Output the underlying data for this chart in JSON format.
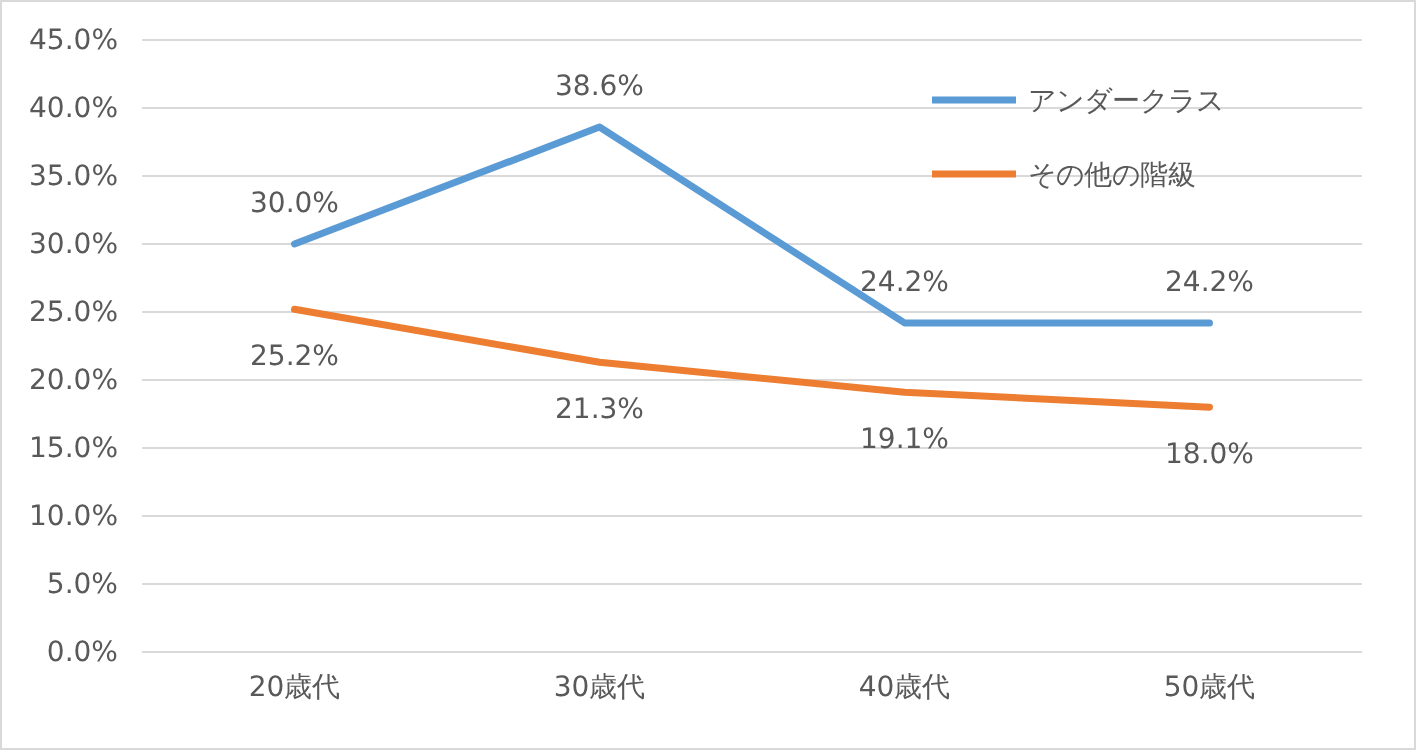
{
  "chart_data": {
    "type": "line",
    "categories": [
      "20歳代",
      "30歳代",
      "40歳代",
      "50歳代"
    ],
    "series": [
      {
        "name": "アンダークラス",
        "color": "#5b9bd5",
        "values": [
          30.0,
          38.6,
          24.2,
          24.2
        ],
        "value_labels": [
          "30.0%",
          "38.6%",
          "24.2%",
          "24.2%"
        ]
      },
      {
        "name": "その他の階級",
        "color": "#ed7d31",
        "values": [
          25.2,
          21.3,
          19.1,
          18.0
        ],
        "value_labels": [
          "25.2%",
          "21.3%",
          "19.1%",
          "18.0%"
        ]
      }
    ],
    "ylim": [
      0,
      45
    ],
    "yticks": [
      {
        "value": 0,
        "label": "0.0%"
      },
      {
        "value": 5,
        "label": "5.0%"
      },
      {
        "value": 10,
        "label": "10.0%"
      },
      {
        "value": 15,
        "label": "15.0%"
      },
      {
        "value": 20,
        "label": "20.0%"
      },
      {
        "value": 25,
        "label": "25.0%"
      },
      {
        "value": 30,
        "label": "30.0%"
      },
      {
        "value": 35,
        "label": "35.0%"
      },
      {
        "value": 40,
        "label": "40.0%"
      },
      {
        "value": 45,
        "label": "45.0%"
      }
    ],
    "grid": "y",
    "legend": "top right",
    "marker": "none",
    "line_style": "solid"
  }
}
